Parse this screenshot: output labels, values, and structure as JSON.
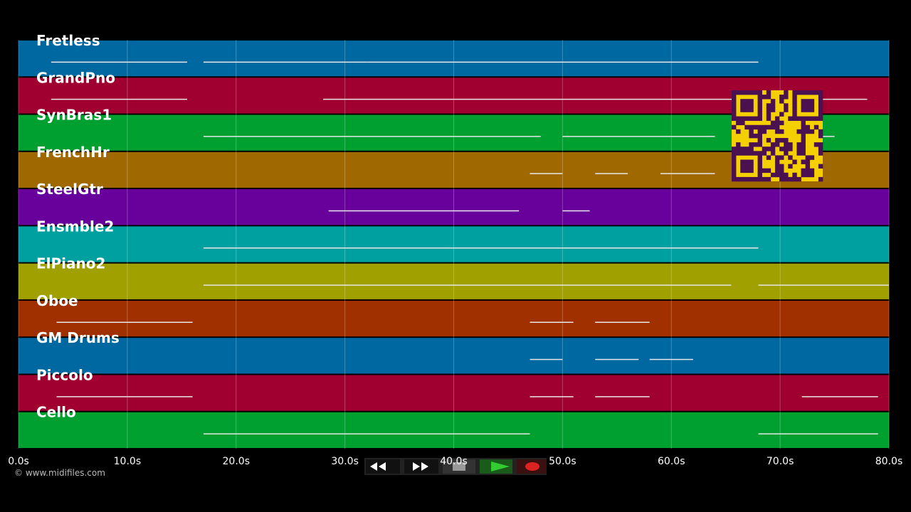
{
  "tracks": [
    {
      "name": "Fretless",
      "color": "#0068a0",
      "notes": [
        [
          3,
          15.5
        ],
        [
          17,
          32
        ],
        [
          32,
          47
        ],
        [
          47,
          68
        ]
      ]
    },
    {
      "name": "GrandPno",
      "color": "#a00030",
      "notes": [
        [
          3,
          15.5
        ],
        [
          28,
          78
        ]
      ]
    },
    {
      "name": "SynBras1",
      "color": "#00a030",
      "notes": [
        [
          17,
          48
        ],
        [
          50,
          64
        ],
        [
          66,
          75
        ]
      ]
    },
    {
      "name": "FrenchHr",
      "color": "#a06800",
      "notes": [
        [
          47,
          50
        ],
        [
          53,
          56
        ],
        [
          59,
          64
        ]
      ]
    },
    {
      "name": "SteelGtr",
      "color": "#68009c",
      "notes": [
        [
          28.5,
          46
        ],
        [
          50,
          52.5
        ]
      ]
    },
    {
      "name": "Ensmble2",
      "color": "#00a0a0",
      "notes": [
        [
          17,
          68
        ]
      ]
    },
    {
      "name": "ElPiano2",
      "color": "#a0a000",
      "notes": [
        [
          17,
          49
        ],
        [
          49,
          65.5
        ],
        [
          68,
          80
        ]
      ]
    },
    {
      "name": "Oboe",
      "color": "#a03000",
      "notes": [
        [
          3.5,
          16
        ],
        [
          47,
          51
        ],
        [
          53,
          58
        ]
      ]
    },
    {
      "name": "GM Drums",
      "color": "#0068a0",
      "notes": [
        [
          47,
          50
        ],
        [
          53,
          57
        ],
        [
          58,
          62
        ]
      ]
    },
    {
      "name": "Piccolo",
      "color": "#a00030",
      "notes": [
        [
          3.5,
          16
        ],
        [
          47,
          51
        ],
        [
          53,
          58
        ],
        [
          72,
          79
        ]
      ]
    },
    {
      "name": "Cello",
      "color": "#00a030",
      "notes": [
        [
          17,
          47
        ],
        [
          68,
          79
        ]
      ]
    }
  ],
  "axis": {
    "xlim": [
      0,
      80
    ],
    "ticks": [
      {
        "value": 0,
        "label": "0.0s"
      },
      {
        "value": 10,
        "label": "10.0s"
      },
      {
        "value": 20,
        "label": "20.0s"
      },
      {
        "value": 30,
        "label": "30.0s"
      },
      {
        "value": 40,
        "label": "40.0s"
      },
      {
        "value": 50,
        "label": "50.0s"
      },
      {
        "value": 60,
        "label": "60.0s"
      },
      {
        "value": 70,
        "label": "70.0s"
      },
      {
        "value": 80,
        "label": "80.0s"
      }
    ]
  },
  "footer": {
    "copyright": "© www.midifiles.com"
  }
}
